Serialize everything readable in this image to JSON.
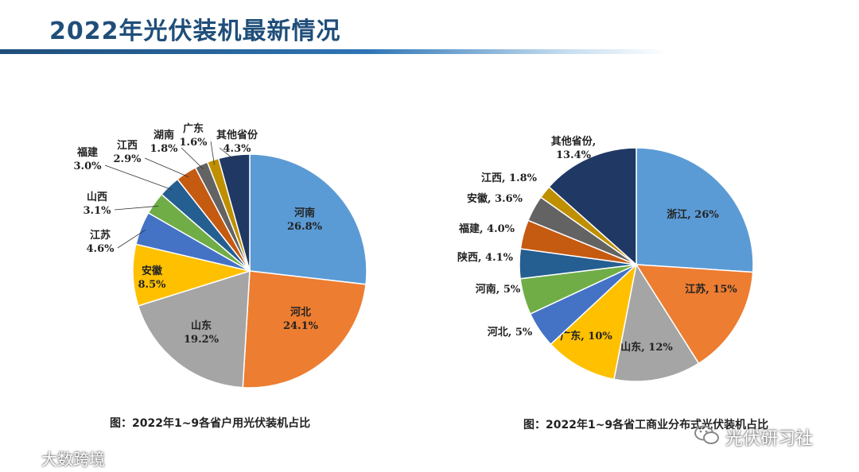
{
  "header": {
    "title": "2022年光伏装机最新情况"
  },
  "captions": {
    "left": "图：2022年1~9各省户用光伏装机占比",
    "right": "图：2022年1~9各省工商业分布式光伏装机占比"
  },
  "watermarks": {
    "left": "大数跨境",
    "right": "光伏研习社"
  },
  "chart_data": [
    {
      "type": "pie",
      "title": "图：2022年1~9各省户用光伏装机占比",
      "slices": [
        {
          "label": "河南",
          "value": 26.8,
          "display": "26.8%",
          "color": "#5b9bd5"
        },
        {
          "label": "河北",
          "value": 24.1,
          "display": "24.1%",
          "color": "#ed7d31"
        },
        {
          "label": "山东",
          "value": 19.2,
          "display": "19.2%",
          "color": "#a5a5a5"
        },
        {
          "label": "安徽",
          "value": 8.5,
          "display": "8.5%",
          "color": "#ffc000"
        },
        {
          "label": "江苏",
          "value": 4.6,
          "display": "4.6%",
          "color": "#4472c4"
        },
        {
          "label": "山西",
          "value": 3.1,
          "display": "3.1%",
          "color": "#70ad47"
        },
        {
          "label": "福建",
          "value": 3.0,
          "display": "3.0%",
          "color": "#255e91"
        },
        {
          "label": "江西",
          "value": 2.9,
          "display": "2.9%",
          "color": "#c55a11"
        },
        {
          "label": "湖南",
          "value": 1.8,
          "display": "1.8%",
          "color": "#636363"
        },
        {
          "label": "广东",
          "value": 1.6,
          "display": "1.6%",
          "color": "#bf8f00"
        },
        {
          "label": "其他省份",
          "value": 4.3,
          "display": "4.3%",
          "color": "#203864"
        }
      ]
    },
    {
      "type": "pie",
      "title": "图：2022年1~9各省工商业分布式光伏装机占比",
      "slices": [
        {
          "label": "浙江",
          "value": 26,
          "display": "26%",
          "color": "#5b9bd5"
        },
        {
          "label": "江苏",
          "value": 15,
          "display": "15%",
          "color": "#ed7d31"
        },
        {
          "label": "山东",
          "value": 12,
          "display": "12%",
          "color": "#a5a5a5"
        },
        {
          "label": "广东",
          "value": 10,
          "display": "10%",
          "color": "#ffc000"
        },
        {
          "label": "河北",
          "value": 5,
          "display": "5%",
          "color": "#4472c4"
        },
        {
          "label": "河南",
          "value": 5,
          "display": "5%",
          "color": "#70ad47"
        },
        {
          "label": "陕西",
          "value": 4.1,
          "display": "4.1%",
          "color": "#255e91"
        },
        {
          "label": "福建",
          "value": 4.0,
          "display": "4.0%",
          "color": "#c55a11"
        },
        {
          "label": "安徽",
          "value": 3.6,
          "display": "3.6%",
          "color": "#636363"
        },
        {
          "label": "江西",
          "value": 1.8,
          "display": "1.8%",
          "color": "#bf8f00"
        },
        {
          "label": "其他省份",
          "value": 13.4,
          "display": "13.4%",
          "color": "#203864"
        }
      ]
    }
  ]
}
